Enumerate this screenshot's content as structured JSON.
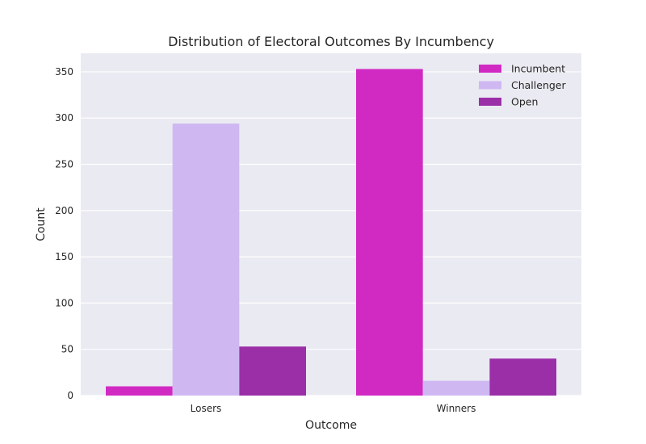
{
  "chart_data": {
    "type": "bar",
    "title": "Distribution of Electoral Outcomes By Incumbency",
    "xlabel": "Outcome",
    "ylabel": "Count",
    "categories": [
      "Losers",
      "Winners"
    ],
    "series": [
      {
        "name": "Incumbent",
        "color": "#d12ac3",
        "values": [
          10,
          353
        ]
      },
      {
        "name": "Challenger",
        "color": "#cfb8f2",
        "values": [
          294,
          16
        ]
      },
      {
        "name": "Open",
        "color": "#9b2fa8",
        "values": [
          53,
          40
        ]
      }
    ],
    "ylim": [
      0,
      370
    ],
    "yticks": [
      0,
      50,
      100,
      150,
      200,
      250,
      300,
      350
    ],
    "grid": true,
    "legend_position": "top-right"
  }
}
